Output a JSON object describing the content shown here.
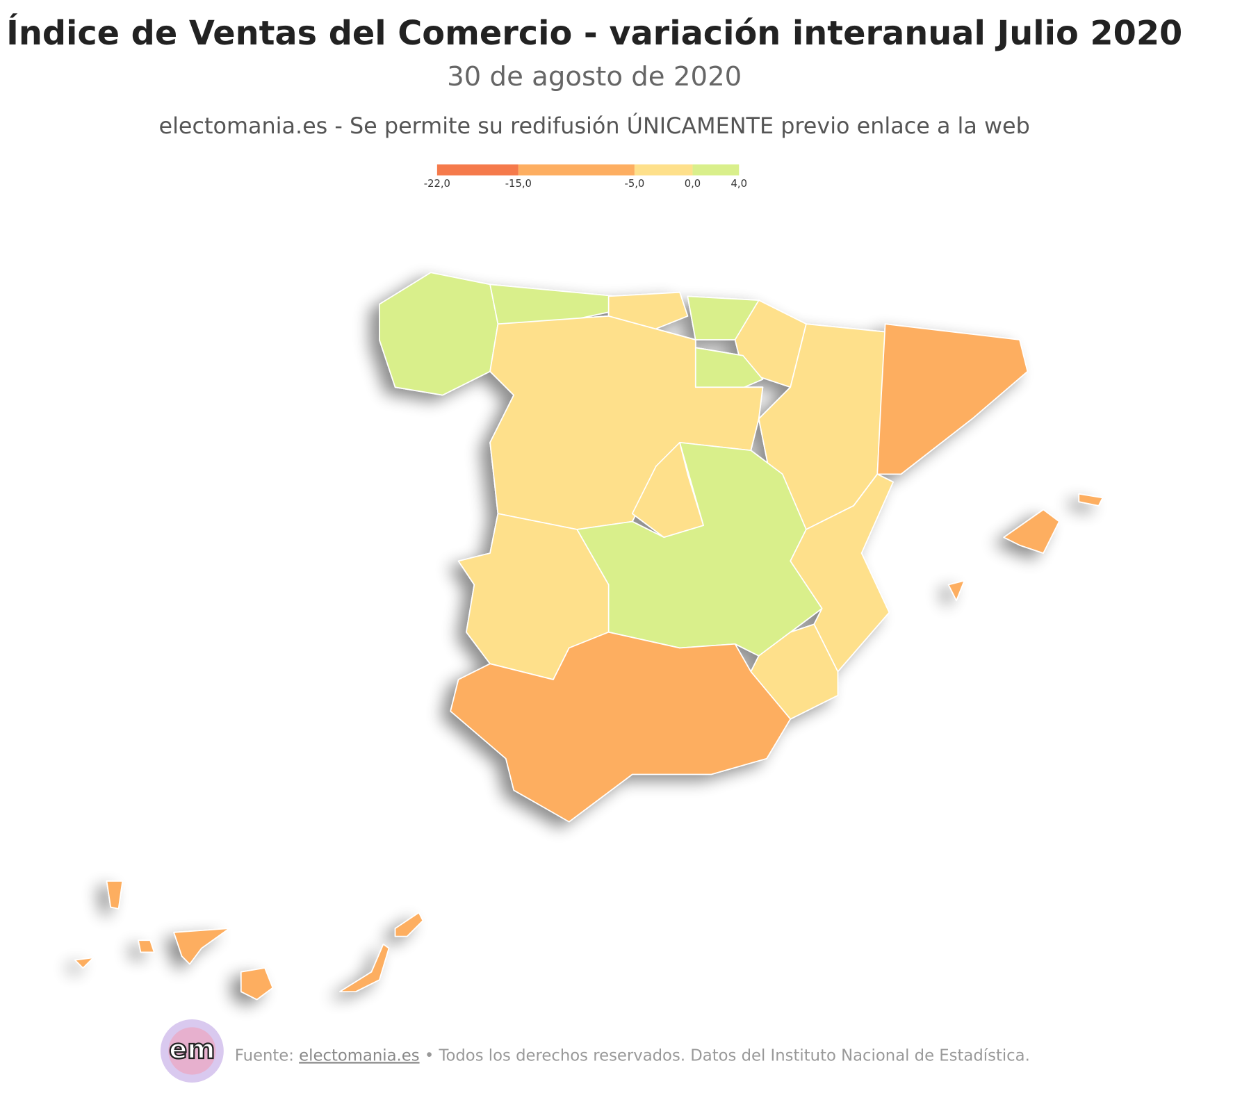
{
  "header": {
    "title": "Índice de Ventas del Comercio - variación interanual Julio 2020",
    "subtitle": "30 de agosto de 2020",
    "credit": "electomania.es - Se permite su redifusión ÚNICAMENTE previo enlace a la web"
  },
  "legend": {
    "breaks": [
      {
        "value": -22,
        "label": "-22,0"
      },
      {
        "value": -15,
        "label": "-15,0"
      },
      {
        "value": -5,
        "label": "-5,0"
      },
      {
        "value": 0,
        "label": "0,0"
      },
      {
        "value": 4,
        "label": "4,0"
      }
    ],
    "colors": [
      "#f57a4b",
      "#fdae61",
      "#fee08b",
      "#d9ef8b"
    ]
  },
  "footer": {
    "source_label": "Fuente:",
    "link": "electomania.es",
    "rest": "• Todos los derechos reservados. Datos del Instituto Nacional de Estadística.",
    "logo": "em"
  }
}
